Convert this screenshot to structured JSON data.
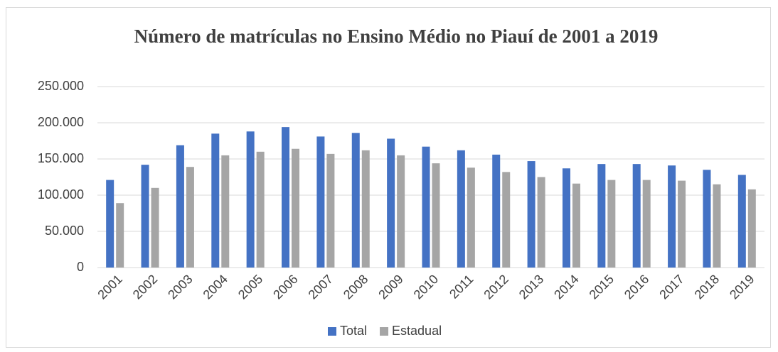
{
  "chart_data": {
    "type": "bar",
    "title": "Número de matrículas no Ensino Médio no Piauí de 2001 a 2019",
    "categories": [
      "2001",
      "2002",
      "2003",
      "2004",
      "2005",
      "2006",
      "2007",
      "2008",
      "2009",
      "2010",
      "2011",
      "2012",
      "2013",
      "2014",
      "2015",
      "2016",
      "2017",
      "2018",
      "2019"
    ],
    "series": [
      {
        "name": "Total",
        "color": "#4472c4",
        "values": [
          121000,
          142000,
          169000,
          185000,
          188000,
          194000,
          181000,
          186000,
          178000,
          167000,
          162000,
          156000,
          147000,
          137000,
          143000,
          143000,
          141000,
          135000,
          128000
        ]
      },
      {
        "name": "Estadual",
        "color": "#a5a5a5",
        "values": [
          89000,
          110000,
          139000,
          155000,
          160000,
          164000,
          157000,
          162000,
          155000,
          144000,
          138000,
          132000,
          125000,
          116000,
          121000,
          121000,
          120000,
          115000,
          108000
        ]
      }
    ],
    "ylim": [
      0,
      250000
    ],
    "yticks": [
      0,
      {
        "value": 50000,
        "label": "50.000"
      },
      {
        "value": 100000,
        "label": "100.000"
      },
      {
        "value": 150000,
        "label": "150.000"
      },
      {
        "value": 200000,
        "label": "200.000"
      },
      {
        "value": 250000,
        "label": "250.000"
      }
    ],
    "grid": true,
    "legend": "bottom"
  }
}
